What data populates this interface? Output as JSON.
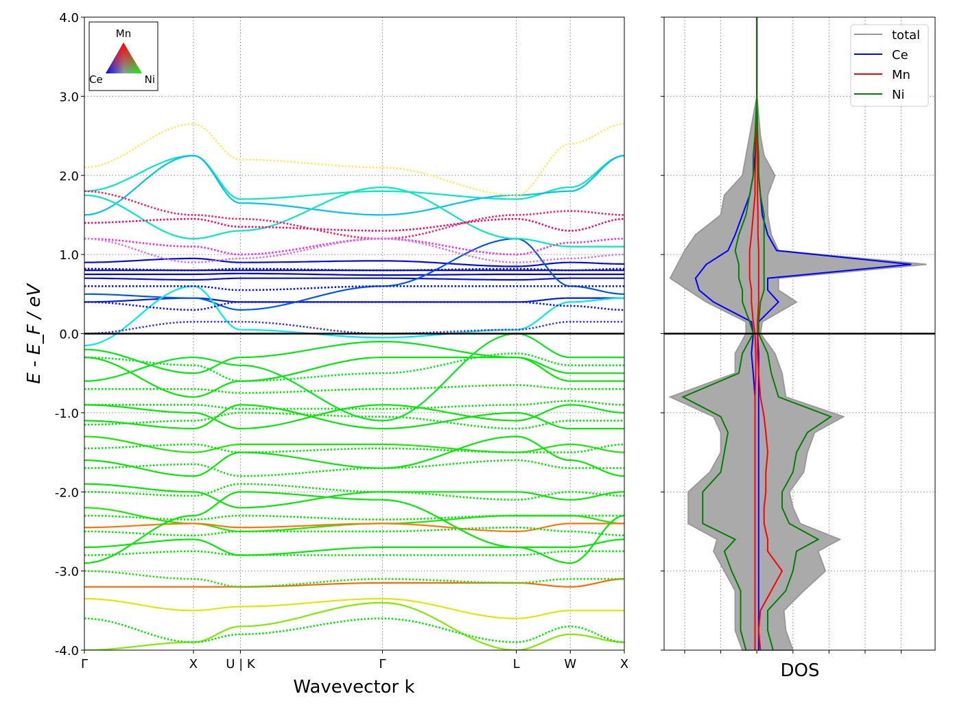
{
  "chart_data": [
    {
      "type": "line",
      "title": "",
      "xlabel": "Wavevector k",
      "ylabel": "E - E_F / eV",
      "ylim": [
        -4,
        4
      ],
      "yticks": [
        "4.0",
        "3.0",
        "2.0",
        "1.0",
        "0.0",
        "-1.0",
        "-2.0",
        "-3.0",
        "-4.0"
      ],
      "ytick_values": [
        4,
        3,
        2,
        1,
        0,
        -1,
        -2,
        -3,
        -4
      ],
      "kpoints": [
        "Γ",
        "X",
        "U | K",
        "Γ",
        "L",
        "W",
        "X"
      ],
      "k_distance": [
        0,
        0.202,
        0.289,
        0.552,
        0.8,
        0.9,
        1.0
      ],
      "grid": true,
      "legend": {
        "type": "ternary-triangle",
        "placement": "top-left",
        "labels": {
          "top": "Mn",
          "left": "Ce",
          "right": "Ni"
        }
      },
      "projection_order": [
        "Ce",
        "Mn",
        "Ni"
      ],
      "bands": [
        {
          "spin": "up",
          "E": [
            0.8,
            0.8,
            0.8,
            0.8,
            0.8,
            0.8,
            0.8
          ],
          "w": [
            1,
            0,
            0
          ]
        },
        {
          "spin": "up",
          "E": [
            0.75,
            0.75,
            0.76,
            0.74,
            0.75,
            0.75,
            0.75
          ],
          "w": [
            1,
            0,
            0
          ]
        },
        {
          "spin": "up",
          "E": [
            0.7,
            0.68,
            0.7,
            0.7,
            0.68,
            0.7,
            0.7
          ],
          "w": [
            1,
            0,
            0.05
          ]
        },
        {
          "spin": "up",
          "E": [
            0.9,
            0.95,
            0.9,
            0.92,
            0.85,
            0.9,
            0.88
          ],
          "w": [
            1,
            0,
            0.05
          ]
        },
        {
          "spin": "up",
          "E": [
            0.4,
            0.45,
            0.4,
            0.4,
            0.4,
            0.45,
            0.45
          ],
          "w": [
            0.9,
            0,
            0.1
          ]
        },
        {
          "spin": "up",
          "E": [
            0.5,
            0.45,
            0.3,
            0.6,
            1.2,
            0.6,
            0.5
          ],
          "w": [
            0.8,
            0,
            0.3
          ]
        },
        {
          "spin": "up",
          "E": [
            1.8,
            2.25,
            1.7,
            1.8,
            1.7,
            1.85,
            2.25
          ],
          "w": [
            0.5,
            0,
            0.6
          ]
        },
        {
          "spin": "up",
          "E": [
            1.5,
            2.25,
            1.65,
            1.5,
            1.75,
            1.8,
            2.25
          ],
          "w": [
            0.6,
            0,
            0.5
          ]
        },
        {
          "spin": "up",
          "E": [
            1.75,
            1.2,
            1.3,
            1.85,
            1.2,
            1.1,
            1.1
          ],
          "w": [
            0.5,
            0,
            0.6
          ]
        },
        {
          "spin": "up",
          "E": [
            -0.15,
            0.6,
            0.05,
            -0.05,
            0.05,
            0.4,
            0.45
          ],
          "w": [
            0.6,
            0,
            0.6
          ]
        },
        {
          "spin": "up",
          "E": [
            -0.2,
            -0.5,
            -0.3,
            -0.1,
            -0.3,
            -0.5,
            -0.5
          ],
          "w": [
            0.05,
            0,
            1
          ]
        },
        {
          "spin": "up",
          "E": [
            -0.3,
            -0.8,
            -0.6,
            -0.3,
            -0.3,
            -0.6,
            -0.6
          ],
          "w": [
            0,
            0,
            1
          ]
        },
        {
          "spin": "up",
          "E": [
            -0.6,
            -0.3,
            -0.4,
            -1.1,
            0.0,
            -0.3,
            -0.3
          ],
          "w": [
            0.1,
            0,
            1
          ]
        },
        {
          "spin": "up",
          "E": [
            -0.9,
            -1.0,
            -1.2,
            -0.9,
            -1.1,
            -0.9,
            -1.0
          ],
          "w": [
            0,
            0,
            1
          ]
        },
        {
          "spin": "up",
          "E": [
            -1.1,
            -1.2,
            -0.9,
            -1.2,
            -1.0,
            -1.2,
            -1.2
          ],
          "w": [
            0,
            0,
            1
          ]
        },
        {
          "spin": "up",
          "E": [
            -1.3,
            -1.5,
            -1.4,
            -1.4,
            -1.5,
            -1.4,
            -1.5
          ],
          "w": [
            0,
            0.1,
            1
          ]
        },
        {
          "spin": "up",
          "E": [
            -1.6,
            -1.8,
            -1.5,
            -1.7,
            -1.3,
            -1.6,
            -1.8
          ],
          "w": [
            0,
            0,
            1
          ]
        },
        {
          "spin": "up",
          "E": [
            -1.9,
            -2.0,
            -2.2,
            -2.0,
            -2.0,
            -2.1,
            -2.0
          ],
          "w": [
            0,
            0,
            1
          ]
        },
        {
          "spin": "up",
          "E": [
            -2.2,
            -2.4,
            -2.5,
            -2.4,
            -2.3,
            -2.3,
            -2.4
          ],
          "w": [
            0,
            0.1,
            1
          ]
        },
        {
          "spin": "up",
          "E": [
            -2.45,
            -2.4,
            -2.45,
            -2.4,
            -2.5,
            -2.4,
            -2.4
          ],
          "w": [
            0,
            0.8,
            0.4
          ]
        },
        {
          "spin": "up",
          "E": [
            -2.7,
            -2.6,
            -2.8,
            -2.7,
            -2.7,
            -2.7,
            -2.6
          ],
          "w": [
            0,
            0,
            1
          ]
        },
        {
          "spin": "up",
          "E": [
            -2.9,
            -2.3,
            -2.0,
            -2.1,
            -2.7,
            -2.9,
            -2.3
          ],
          "w": [
            0,
            0,
            1
          ]
        },
        {
          "spin": "up",
          "E": [
            -3.35,
            -3.5,
            -3.45,
            -3.35,
            -3.6,
            -3.5,
            -3.5
          ],
          "w": [
            0,
            0.6,
            0.7
          ]
        },
        {
          "spin": "up",
          "E": [
            -3.2,
            -3.2,
            -3.2,
            -3.15,
            -3.15,
            -3.2,
            -3.1
          ],
          "w": [
            0,
            0.8,
            0.35
          ]
        },
        {
          "spin": "up",
          "E": [
            -4.0,
            -3.9,
            -3.7,
            -3.4,
            -4.0,
            -3.8,
            -3.9
          ],
          "w": [
            0,
            0.4,
            0.8
          ]
        },
        {
          "spin": "down",
          "E": [
            2.1,
            2.65,
            2.2,
            2.1,
            1.75,
            2.4,
            2.65
          ],
          "w": [
            0.2,
            0.5,
            0.5
          ]
        },
        {
          "spin": "down",
          "E": [
            1.8,
            1.5,
            1.45,
            1.2,
            1.5,
            1.55,
            1.5
          ],
          "w": [
            0.3,
            0.8,
            0.1
          ]
        },
        {
          "spin": "down",
          "E": [
            1.4,
            1.45,
            1.35,
            1.3,
            1.45,
            1.3,
            1.45
          ],
          "w": [
            0.4,
            0.8,
            0
          ]
        },
        {
          "spin": "down",
          "E": [
            1.2,
            1.1,
            1.0,
            1.2,
            1.0,
            1.15,
            1.2
          ],
          "w": [
            0.6,
            0.6,
            0.1
          ]
        },
        {
          "spin": "down",
          "E": [
            1.2,
            0.9,
            0.95,
            1.2,
            0.9,
            0.95,
            1.0
          ],
          "w": [
            0.6,
            0.5,
            0.3
          ]
        },
        {
          "spin": "down",
          "E": [
            0.82,
            0.8,
            0.82,
            0.8,
            0.82,
            0.8,
            0.82
          ],
          "w": [
            1,
            0,
            0.05
          ]
        },
        {
          "spin": "down",
          "E": [
            0.6,
            0.6,
            0.55,
            0.6,
            0.6,
            0.6,
            0.6
          ],
          "w": [
            1,
            0,
            0.1
          ]
        },
        {
          "spin": "down",
          "E": [
            0.4,
            0.3,
            0.4,
            0.4,
            0.4,
            0.35,
            0.3
          ],
          "w": [
            0.9,
            0.1,
            0.1
          ]
        },
        {
          "spin": "down",
          "E": [
            0.0,
            0.15,
            0.15,
            0.0,
            0.05,
            0.15,
            0.15
          ],
          "w": [
            0.8,
            0.2,
            0.2
          ]
        },
        {
          "spin": "down",
          "E": [
            -0.3,
            -0.4,
            -0.6,
            -0.5,
            -0.25,
            -0.4,
            -0.4
          ],
          "w": [
            0.1,
            0,
            1
          ]
        },
        {
          "spin": "down",
          "E": [
            -0.7,
            -0.7,
            -0.75,
            -0.7,
            -0.65,
            -0.7,
            -0.7
          ],
          "w": [
            0,
            0,
            1
          ]
        },
        {
          "spin": "down",
          "E": [
            -0.9,
            -0.9,
            -0.95,
            -0.95,
            -0.9,
            -0.85,
            -0.9
          ],
          "w": [
            0,
            0,
            1
          ]
        },
        {
          "spin": "down",
          "E": [
            -1.15,
            -1.1,
            -1.0,
            -1.05,
            -1.2,
            -1.1,
            -1.1
          ],
          "w": [
            0,
            0,
            1
          ]
        },
        {
          "spin": "down",
          "E": [
            -1.45,
            -1.4,
            -1.5,
            -1.45,
            -1.5,
            -1.5,
            -1.4
          ],
          "w": [
            0,
            0,
            1
          ]
        },
        {
          "spin": "down",
          "E": [
            -1.7,
            -1.65,
            -1.8,
            -1.7,
            -1.6,
            -1.7,
            -1.7
          ],
          "w": [
            0,
            0,
            1
          ]
        },
        {
          "spin": "down",
          "E": [
            -2.0,
            -2.05,
            -1.9,
            -2.0,
            -2.1,
            -2.0,
            -2.05
          ],
          "w": [
            0,
            0,
            1
          ]
        },
        {
          "spin": "down",
          "E": [
            -2.3,
            -2.35,
            -2.3,
            -2.35,
            -2.3,
            -2.3,
            -2.3
          ],
          "w": [
            0,
            0,
            1
          ]
        },
        {
          "spin": "down",
          "E": [
            -2.5,
            -2.55,
            -2.5,
            -2.5,
            -2.45,
            -2.5,
            -2.55
          ],
          "w": [
            0,
            0,
            1
          ]
        },
        {
          "spin": "down",
          "E": [
            -2.8,
            -2.75,
            -2.8,
            -2.8,
            -2.8,
            -2.75,
            -2.75
          ],
          "w": [
            0,
            0,
            1
          ]
        },
        {
          "spin": "down",
          "E": [
            -3.0,
            -3.1,
            -3.2,
            -3.1,
            -3.15,
            -3.1,
            -3.1
          ],
          "w": [
            0,
            0.1,
            1
          ]
        },
        {
          "spin": "down",
          "E": [
            -3.6,
            -3.9,
            -3.8,
            -3.6,
            -3.9,
            -3.7,
            -3.9
          ],
          "w": [
            0,
            0,
            1
          ]
        }
      ]
    },
    {
      "type": "line",
      "xlabel": "DOS",
      "ylim": [
        -4,
        4
      ],
      "xlim": [
        -2.57,
        4.94
      ],
      "xticks": [
        -2,
        -1,
        0,
        1,
        2,
        3,
        4
      ],
      "grid": true,
      "legend_placement": "top-right",
      "energies": [
        -4,
        -3.75,
        -3.5,
        -3.25,
        -3,
        -2.75,
        -2.6,
        -2.4,
        -2.2,
        -2,
        -1.75,
        -1.5,
        -1.25,
        -1.05,
        -0.8,
        -0.5,
        -0.25,
        0,
        0.15,
        0.4,
        0.55,
        0.7,
        0.875,
        1.05,
        1.25,
        1.5,
        1.75,
        2.0,
        2.25,
        2.5,
        3.0
      ],
      "series": [
        {
          "name": "total",
          "color": "#999999",
          "fill": true,
          "up": [
            1.0,
            0.8,
            0.75,
            1.3,
            1.9,
            1.7,
            2.3,
            1.2,
            1.0,
            0.9,
            1.3,
            1.4,
            1.6,
            2.4,
            0.8,
            0.7,
            0.5,
            0.1,
            0.15,
            1.1,
            0.6,
            0.6,
            4.7,
            0.6,
            0.4,
            0.3,
            0.3,
            0.5,
            0.2,
            0.1,
            0
          ],
          "down": [
            -0.4,
            -0.6,
            -0.6,
            -0.6,
            -0.9,
            -1.2,
            -1.1,
            -1.9,
            -1.9,
            -1.9,
            -1.3,
            -1.0,
            -1.0,
            -1.2,
            -2.4,
            -0.6,
            -0.6,
            -0.3,
            -0.3,
            -1.4,
            -1.9,
            -2.4,
            -2.2,
            -2.0,
            -1.7,
            -1.0,
            -0.9,
            -0.4,
            -0.3,
            -0.2,
            0
          ]
        },
        {
          "name": "Ce",
          "color": "#0000ff",
          "up": [
            0.05,
            0.05,
            0.05,
            0.05,
            0.05,
            0.05,
            0.05,
            0.05,
            0.05,
            0.05,
            0.05,
            0.05,
            0.05,
            0.05,
            0.05,
            0.05,
            0.05,
            0.02,
            0.05,
            0.6,
            0.3,
            0.3,
            4.28,
            0.55,
            0.3,
            0.15,
            0.1,
            0.05,
            0.03,
            0.02,
            0
          ],
          "down": [
            -0.05,
            -0.05,
            -0.05,
            -0.05,
            -0.05,
            -0.05,
            -0.05,
            -0.05,
            -0.05,
            -0.05,
            -0.05,
            -0.05,
            -0.05,
            -0.05,
            -0.05,
            -0.1,
            -0.15,
            -0.1,
            -0.15,
            -1.2,
            -1.6,
            -1.7,
            -1.4,
            -0.8,
            -0.6,
            -0.4,
            -0.2,
            -0.1,
            -0.05,
            -0.02,
            0
          ]
        },
        {
          "name": "Mn",
          "color": "#ff0000",
          "up": [
            0.1,
            0.05,
            0.1,
            0.4,
            0.7,
            0.3,
            0.3,
            0.2,
            0.2,
            0.25,
            0.25,
            0.3,
            0.25,
            0.2,
            0.1,
            0.05,
            0.02,
            0.02,
            0.02,
            0.05,
            0.05,
            0.05,
            0.05,
            0.05,
            0.03,
            0.03,
            0.02,
            0.02,
            0.02,
            0.01,
            0
          ],
          "down": [
            -0.05,
            -0.05,
            -0.05,
            -0.05,
            -0.05,
            -0.05,
            -0.05,
            -0.05,
            -0.05,
            -0.05,
            -0.05,
            -0.05,
            -0.05,
            -0.05,
            -0.05,
            -0.03,
            -0.03,
            -0.05,
            -0.1,
            -0.15,
            -0.15,
            -0.2,
            -0.2,
            -0.2,
            -0.15,
            -0.1,
            -0.05,
            -0.05,
            -0.03,
            -0.02,
            0
          ]
        },
        {
          "name": "Ni",
          "color": "#008000",
          "up": [
            0.45,
            0.3,
            0.3,
            0.8,
            1.0,
            1.1,
            1.7,
            0.9,
            0.7,
            0.7,
            1.0,
            1.1,
            1.4,
            2.05,
            0.6,
            0.4,
            0.3,
            0.05,
            0.05,
            0.1,
            0.2,
            0.2,
            0.2,
            0.2,
            0.2,
            0.2,
            0.1,
            0.05,
            0.05,
            0.02,
            0
          ],
          "down": [
            -0.3,
            -0.45,
            -0.45,
            -0.45,
            -0.7,
            -0.9,
            -0.6,
            -1.5,
            -1.5,
            -1.5,
            -1.0,
            -0.9,
            -0.8,
            -1.0,
            -2.05,
            -0.5,
            -0.4,
            -0.1,
            -0.2,
            -0.4,
            -0.4,
            -0.5,
            -0.5,
            -0.6,
            -0.5,
            -0.3,
            -0.2,
            -0.1,
            -0.1,
            -0.05,
            0
          ]
        }
      ]
    }
  ]
}
